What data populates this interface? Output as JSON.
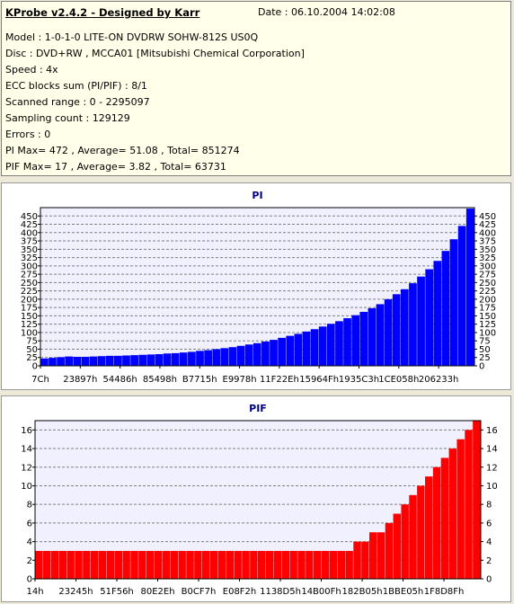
{
  "header": {
    "title": "KProbe v2.4.2 - Designed by Karr",
    "date": "Date : 06.10.2004 14:02:08",
    "lines": [
      "Model : 1-0-1-0 LITE-ON DVDRW SOHW-812S  US0Q",
      "Disc : DVD+RW , MCCA01 [Mitsubishi Chemical Corporation]",
      "Speed : 4x",
      "ECC blocks sum (PI/PIF) : 8/1",
      "Scanned range : 0 - 2295097",
      "Sampling count : 129129",
      "Errors : 0",
      "PI Max= 472 , Average= 51.08 , Total= 851274",
      "PIF Max= 17 , Average= 3.82 , Total= 63731"
    ]
  },
  "chart_data": [
    {
      "type": "bar",
      "title": "PI",
      "ylim": [
        0,
        475
      ],
      "yticks": [
        0,
        25,
        50,
        75,
        100,
        125,
        150,
        175,
        200,
        225,
        250,
        275,
        300,
        325,
        350,
        375,
        400,
        425,
        450
      ],
      "xtick_labels": [
        "7Ch",
        "23897h",
        "54486h",
        "85498h",
        "B7715h",
        "E9978h",
        "11F22Eh",
        "15964Fh",
        "1935C3h",
        "1CE058h",
        "206233h"
      ],
      "grid": true,
      "bar_color": "#0000ff",
      "plot_bg": "#f0f0ff",
      "values": [
        22,
        24,
        26,
        28,
        27,
        27,
        28,
        29,
        30,
        30,
        31,
        32,
        33,
        34,
        35,
        37,
        38,
        40,
        42,
        45,
        47,
        50,
        53,
        56,
        60,
        64,
        68,
        73,
        78,
        84,
        90,
        96,
        103,
        110,
        118,
        126,
        134,
        143,
        152,
        162,
        173,
        185,
        200,
        215,
        230,
        248,
        268,
        290,
        315,
        345,
        380,
        420,
        472
      ]
    },
    {
      "type": "bar",
      "title": "PIF",
      "ylim": [
        0,
        17
      ],
      "yticks": [
        0,
        2,
        4,
        6,
        8,
        10,
        12,
        14,
        16
      ],
      "xtick_labels": [
        "14h",
        "23245h",
        "51F56h",
        "80E2Eh",
        "B0CF7h",
        "E08F2h",
        "1138D5h",
        "14B00Fh",
        "182B05h",
        "1BBE05h",
        "1F8D8Fh"
      ],
      "grid": true,
      "bar_color": "#ff0000",
      "plot_bg": "#f0f0ff",
      "values": [
        3,
        3,
        3,
        3,
        3,
        3,
        3,
        3,
        3,
        3,
        3,
        3,
        3,
        3,
        3,
        3,
        3,
        3,
        3,
        3,
        3,
        3,
        3,
        3,
        3,
        3,
        3,
        3,
        3,
        3,
        3,
        3,
        3,
        3,
        3,
        3,
        3,
        3,
        3,
        3,
        4,
        4,
        5,
        5,
        6,
        7,
        8,
        9,
        10,
        11,
        12,
        13,
        14,
        15,
        16,
        17
      ]
    }
  ]
}
